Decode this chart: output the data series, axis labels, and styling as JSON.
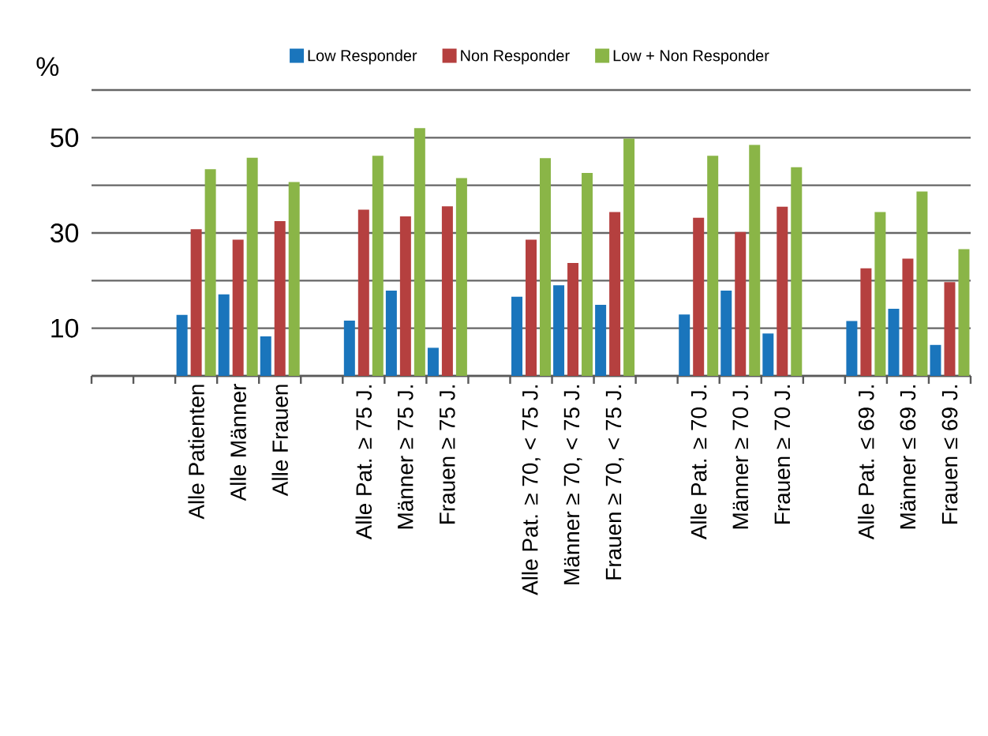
{
  "chart_data": {
    "type": "bar",
    "ylabel": "%",
    "categories": [
      null,
      null,
      "Alle Patienten",
      "Alle Männer",
      "Alle Frauen",
      null,
      "Alle Pat. ≥ 75 J.",
      "Männer ≥ 75 J.",
      "Frauen ≥ 75 J.",
      null,
      "Alle Pat. ≥ 70, < 75 J.",
      "Männer ≥ 70, < 75 J.",
      "Frauen ≥ 70, < 75 J.",
      null,
      "Alle Pat. ≥ 70 J.",
      "Männer ≥ 70 J.",
      "Frauen ≥ 70 J.",
      null,
      "Alle Pat. ≤ 69 J.",
      "Männer ≤ 69 J.",
      "Frauen ≤ 69 J."
    ],
    "series": [
      {
        "name": "Low Responder",
        "color": "#1a75bc",
        "values": [
          null,
          null,
          12.8,
          17.1,
          8.3,
          null,
          11.6,
          17.9,
          5.9,
          null,
          16.6,
          19.0,
          14.9,
          null,
          12.9,
          17.9,
          8.9,
          null,
          11.5,
          14.1,
          6.5
        ]
      },
      {
        "name": "Non Responder",
        "color": "#b5403f",
        "values": [
          null,
          null,
          30.8,
          28.6,
          32.5,
          null,
          34.9,
          33.5,
          35.6,
          null,
          28.6,
          23.7,
          34.4,
          null,
          33.2,
          30.2,
          35.5,
          null,
          22.6,
          24.6,
          19.7
        ]
      },
      {
        "name": "Low + Non Responder",
        "color": "#8ab547",
        "values": [
          null,
          null,
          43.4,
          45.8,
          40.7,
          null,
          46.2,
          52.0,
          41.5,
          null,
          45.7,
          42.6,
          49.8,
          null,
          46.2,
          48.5,
          43.8,
          null,
          34.4,
          38.7,
          26.6
        ]
      }
    ],
    "ylim": [
      0,
      60
    ],
    "yticks": [
      {
        "value": 0,
        "label": null
      },
      10,
      {
        "value": 20,
        "label": null
      },
      30,
      {
        "value": 40,
        "label": null
      },
      50,
      {
        "value": 60,
        "label": null
      }
    ],
    "grid": "y",
    "legend": "top"
  }
}
